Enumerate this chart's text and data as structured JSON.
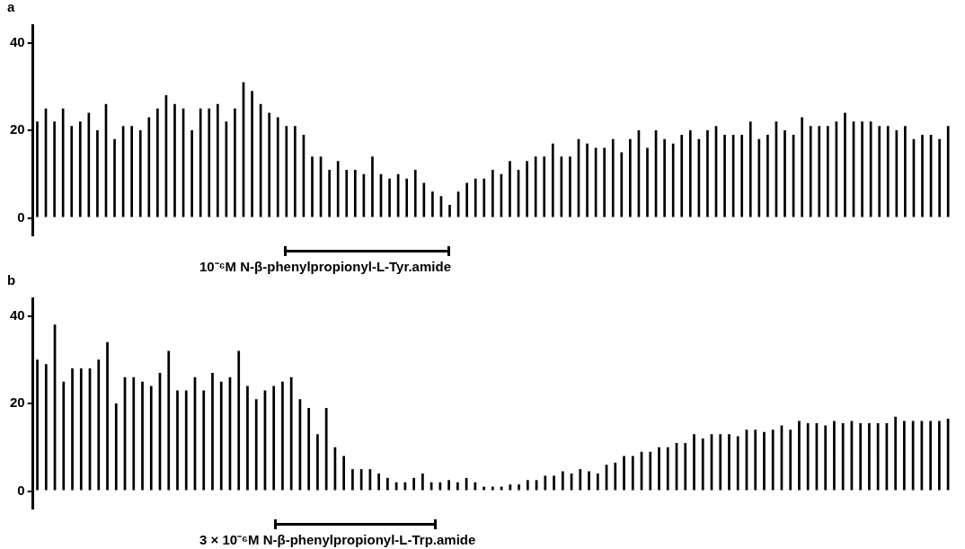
{
  "chart_data": [
    {
      "type": "bar",
      "title": "a",
      "color": "#000000",
      "ylim": [
        -4,
        44
      ],
      "yticks": [
        0,
        20,
        40
      ],
      "grid": false,
      "tick_labels": "y",
      "annotations": [
        "10⁻⁶M N-β-phenylpropionyl-L-Tyr.amide"
      ],
      "categories": [
        null,
        null,
        null,
        null,
        null,
        null,
        null,
        null,
        null,
        null,
        null,
        null,
        null,
        null,
        null,
        null,
        null,
        null,
        null,
        null,
        null,
        null,
        null,
        null,
        null,
        null,
        null,
        null,
        null,
        null,
        null,
        null,
        null,
        null,
        null,
        null,
        null,
        null,
        null,
        null,
        null,
        null,
        null,
        null,
        null,
        null,
        null,
        null,
        null,
        null,
        null,
        null,
        null,
        null,
        null,
        null,
        null,
        null,
        null,
        null,
        null,
        null,
        null,
        null,
        null,
        null,
        null,
        null,
        null,
        null,
        null,
        null,
        null,
        null,
        null,
        null,
        null,
        null,
        null,
        null,
        null,
        null,
        null,
        null,
        null,
        null,
        null,
        null,
        null,
        null,
        null,
        null,
        null,
        null,
        null,
        null,
        null,
        null,
        null,
        null,
        null,
        null,
        null,
        null,
        null,
        null,
        null
      ],
      "values": [
        22,
        25,
        22,
        25,
        21,
        22,
        24,
        20,
        26,
        18,
        21,
        21,
        20,
        23,
        25,
        28,
        26,
        25,
        20,
        25,
        25,
        26,
        22,
        25,
        31,
        29,
        26,
        24,
        23,
        21,
        21,
        19,
        14,
        14,
        11,
        13,
        11,
        11,
        10,
        14,
        10,
        9,
        10,
        9,
        11,
        8,
        6,
        5,
        3,
        6,
        8,
        9,
        9,
        11,
        10,
        13,
        11,
        13,
        14,
        14,
        17,
        14,
        14,
        18,
        17,
        16,
        16,
        18,
        15,
        18,
        20,
        16,
        20,
        18,
        17,
        19,
        20,
        18,
        20,
        21,
        19,
        19,
        19,
        22,
        18,
        19,
        22,
        20,
        19,
        23,
        21,
        21,
        21,
        22,
        24,
        22,
        22,
        22,
        21,
        21,
        20,
        21,
        18,
        19,
        19,
        18,
        21
      ]
    },
    {
      "type": "bar",
      "title": "b",
      "color": "#000000",
      "ylim": [
        -4,
        44
      ],
      "yticks": [
        0,
        20,
        40
      ],
      "grid": false,
      "tick_labels": "y",
      "annotations": [
        "3 × 10⁻⁶M N-β-phenylpropionyl-L-Trp.amide"
      ],
      "categories": [
        null,
        null,
        null,
        null,
        null,
        null,
        null,
        null,
        null,
        null,
        null,
        null,
        null,
        null,
        null,
        null,
        null,
        null,
        null,
        null,
        null,
        null,
        null,
        null,
        null,
        null,
        null,
        null,
        null,
        null,
        null,
        null,
        null,
        null,
        null,
        null,
        null,
        null,
        null,
        null,
        null,
        null,
        null,
        null,
        null,
        null,
        null,
        null,
        null,
        null,
        null,
        null,
        null,
        null,
        null,
        null,
        null,
        null,
        null,
        null,
        null,
        null,
        null,
        null,
        null,
        null,
        null,
        null,
        null,
        null,
        null,
        null,
        null,
        null,
        null,
        null,
        null,
        null,
        null,
        null,
        null,
        null,
        null,
        null,
        null,
        null,
        null,
        null,
        null,
        null,
        null,
        null,
        null,
        null,
        null,
        null,
        null,
        null,
        null,
        null,
        null,
        null,
        null,
        null,
        null
      ],
      "values": [
        30,
        29,
        38,
        25,
        28,
        28,
        28,
        30,
        34,
        20,
        26,
        26,
        25,
        24,
        27,
        32,
        23,
        23,
        26,
        23,
        27,
        25,
        26,
        32,
        24,
        21,
        23,
        24,
        25,
        26,
        21,
        19,
        13,
        19,
        10,
        8,
        5,
        5,
        5,
        4,
        3,
        2,
        2,
        3,
        4,
        2,
        2,
        2.5,
        2,
        3,
        2,
        1,
        1,
        1,
        1.5,
        1.5,
        2.5,
        2.5,
        3.5,
        3.5,
        4.5,
        4,
        5,
        4.5,
        4,
        6,
        6.5,
        8,
        8,
        9,
        9,
        10,
        10,
        11,
        11,
        13,
        12,
        13,
        13,
        13,
        12.5,
        14,
        14,
        13.5,
        14,
        15,
        14,
        16,
        15.5,
        15.5,
        15,
        16,
        15.5,
        16,
        15.5,
        15.5,
        15.5,
        15.5,
        17,
        16,
        16,
        16,
        16,
        16,
        16.5
      ]
    }
  ]
}
